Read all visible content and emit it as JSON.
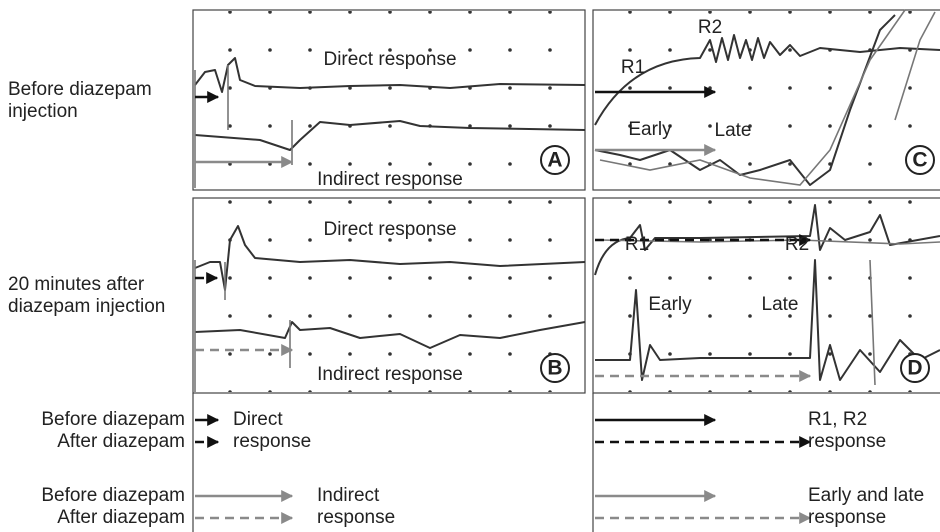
{
  "row_labels": [
    [
      "Before diazepam",
      "injection"
    ],
    [
      "20 minutes after",
      "diazepam injection"
    ]
  ],
  "panels": [
    {
      "letter": "A",
      "texts": [
        "Direct response",
        "Indirect response"
      ]
    },
    {
      "letter": "C",
      "texts": [
        "R1",
        "R2",
        "Early",
        "Late"
      ]
    },
    {
      "letter": "B",
      "texts": [
        "Direct response",
        "Indirect response"
      ]
    },
    {
      "letter": "D",
      "texts": [
        "R1",
        "R2",
        "Early",
        "Late"
      ]
    }
  ],
  "legend": {
    "conditions": [
      "Before diazepam",
      "After diazepam"
    ],
    "left": [
      [
        "Direct",
        "response"
      ],
      [
        "Indirect",
        "response"
      ]
    ],
    "right": [
      [
        "R1, R2",
        "response"
      ],
      [
        "Early and late",
        "response"
      ]
    ]
  }
}
